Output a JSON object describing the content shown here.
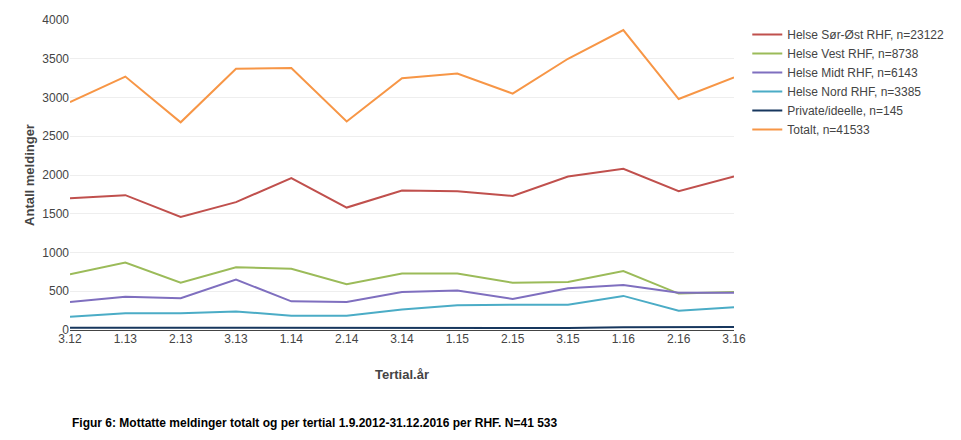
{
  "chart_data": {
    "type": "line",
    "categories": [
      "3.12",
      "1.13",
      "2.13",
      "3.13",
      "1.14",
      "2.14",
      "3.14",
      "1.15",
      "2.15",
      "3.15",
      "1.16",
      "2.16",
      "3.16"
    ],
    "series": [
      {
        "name": "Helse Sør-Øst RHF, n=23122",
        "color": "#c0504d",
        "values": [
          1700,
          1740,
          1460,
          1650,
          1960,
          1580,
          1800,
          1790,
          1730,
          1980,
          2080,
          1790,
          1980
        ]
      },
      {
        "name": "Helse Vest RHF, n=8738",
        "color": "#9bbb59",
        "values": [
          720,
          870,
          610,
          810,
          790,
          590,
          730,
          730,
          610,
          620,
          760,
          470,
          490
        ]
      },
      {
        "name": "Helse Midt RHF, n=6143",
        "color": "#7f6fbf",
        "values": [
          360,
          430,
          410,
          650,
          370,
          360,
          490,
          510,
          400,
          540,
          580,
          480,
          480
        ]
      },
      {
        "name": "Helse Nord RHF, n=3385",
        "color": "#4bacc6",
        "values": [
          170,
          215,
          215,
          240,
          185,
          185,
          265,
          320,
          325,
          325,
          440,
          250,
          295
        ]
      },
      {
        "name": "Private/ideelle, n=145",
        "color": "#17375e",
        "values": [
          30,
          30,
          25,
          25,
          25,
          25,
          25,
          30,
          25,
          25,
          35,
          35,
          40
        ]
      },
      {
        "name": "Totalt, n=41533",
        "color": "#f79646",
        "values": [
          2940,
          3270,
          2680,
          3370,
          3380,
          2690,
          3250,
          3310,
          3050,
          3500,
          3870,
          2980,
          3260
        ]
      }
    ],
    "xlabel": "Tertial.år",
    "ylabel": "Antall meldinger",
    "ylim": [
      0,
      4000
    ],
    "yticks": [
      0,
      500,
      1000,
      1500,
      2000,
      2500,
      3000,
      3500,
      4000
    ],
    "grid": true,
    "legend": "right",
    "annotations": [
      "Figur 6: Mottatte meldinger totalt og per tertial 1.9.2012-31.12.2016 per RHF. N=41 533"
    ]
  }
}
